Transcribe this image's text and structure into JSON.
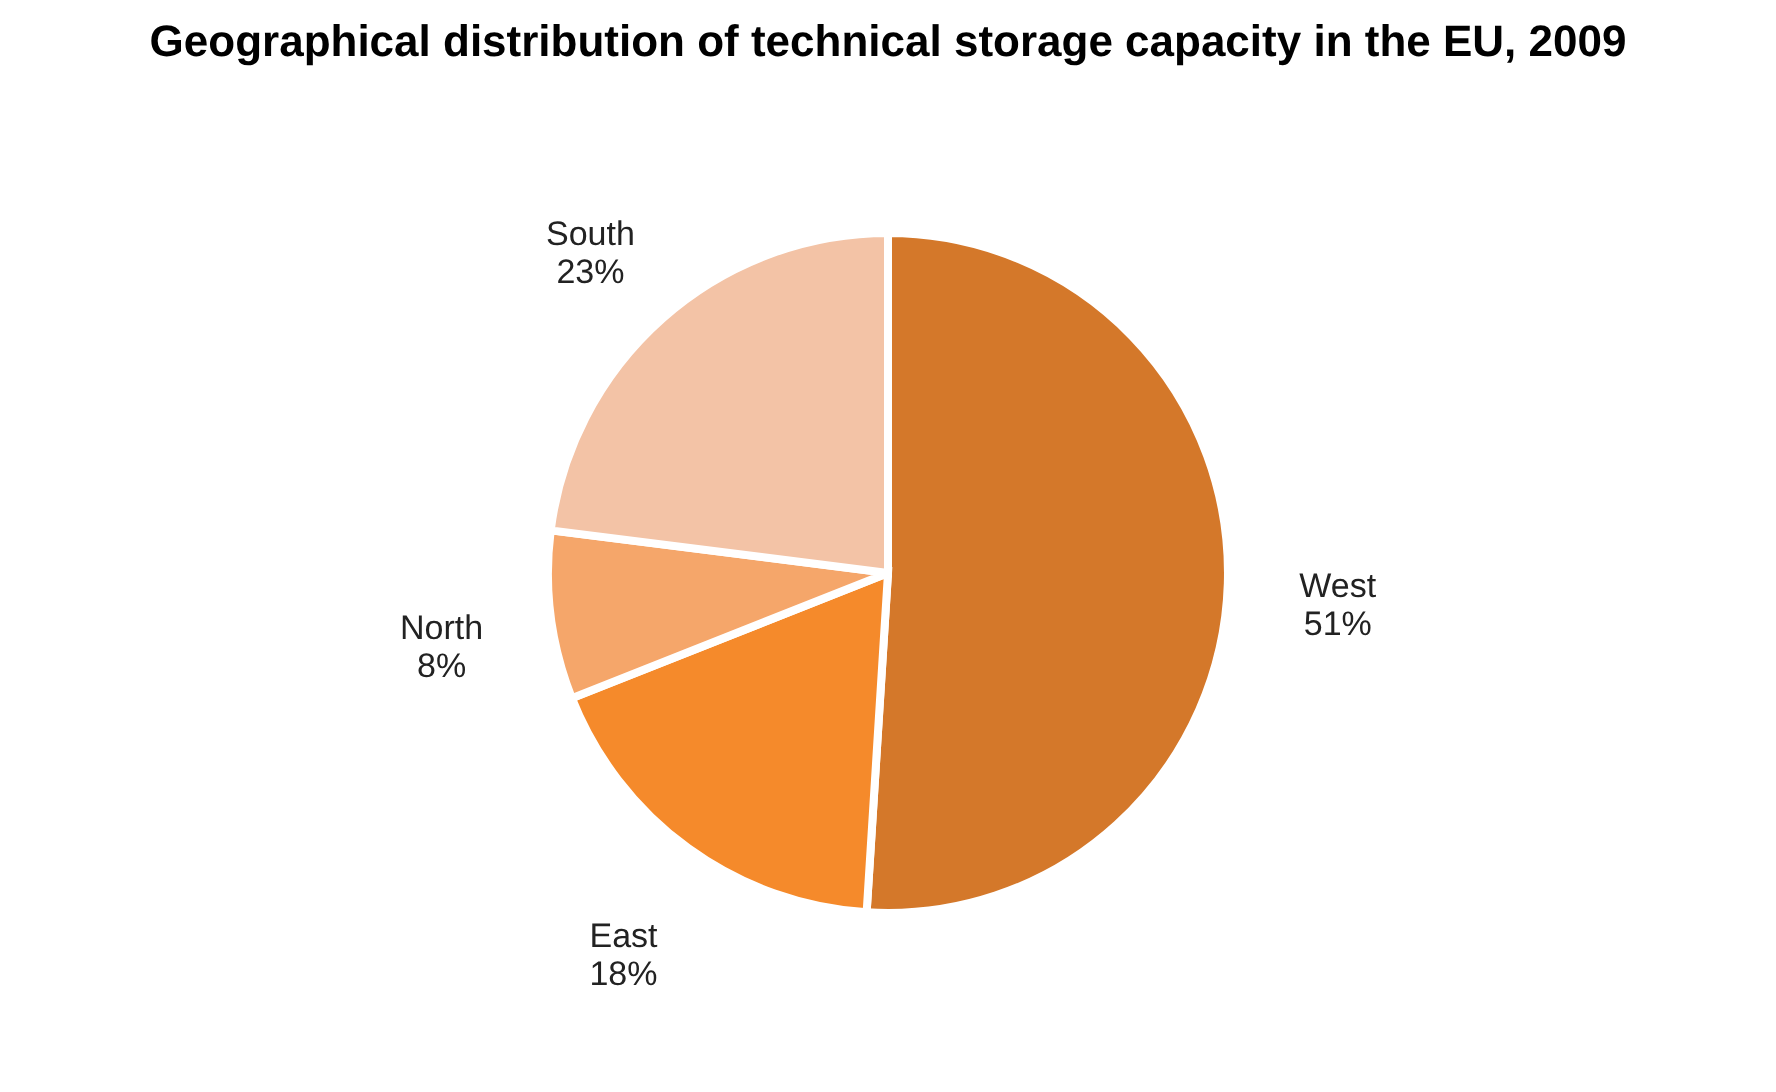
{
  "chart_data": {
    "type": "pie",
    "title": "Geographical distribution of technical storage capacity in the EU, 2009",
    "categories": [
      "West",
      "East",
      "North",
      "South"
    ],
    "values": [
      51,
      18,
      8,
      23
    ],
    "colors": [
      "#d4782a",
      "#f58a2b",
      "#f5a66a",
      "#f3c3a6"
    ],
    "value_labels": [
      "51%",
      "18%",
      "8%",
      "23%"
    ],
    "legend": false
  }
}
